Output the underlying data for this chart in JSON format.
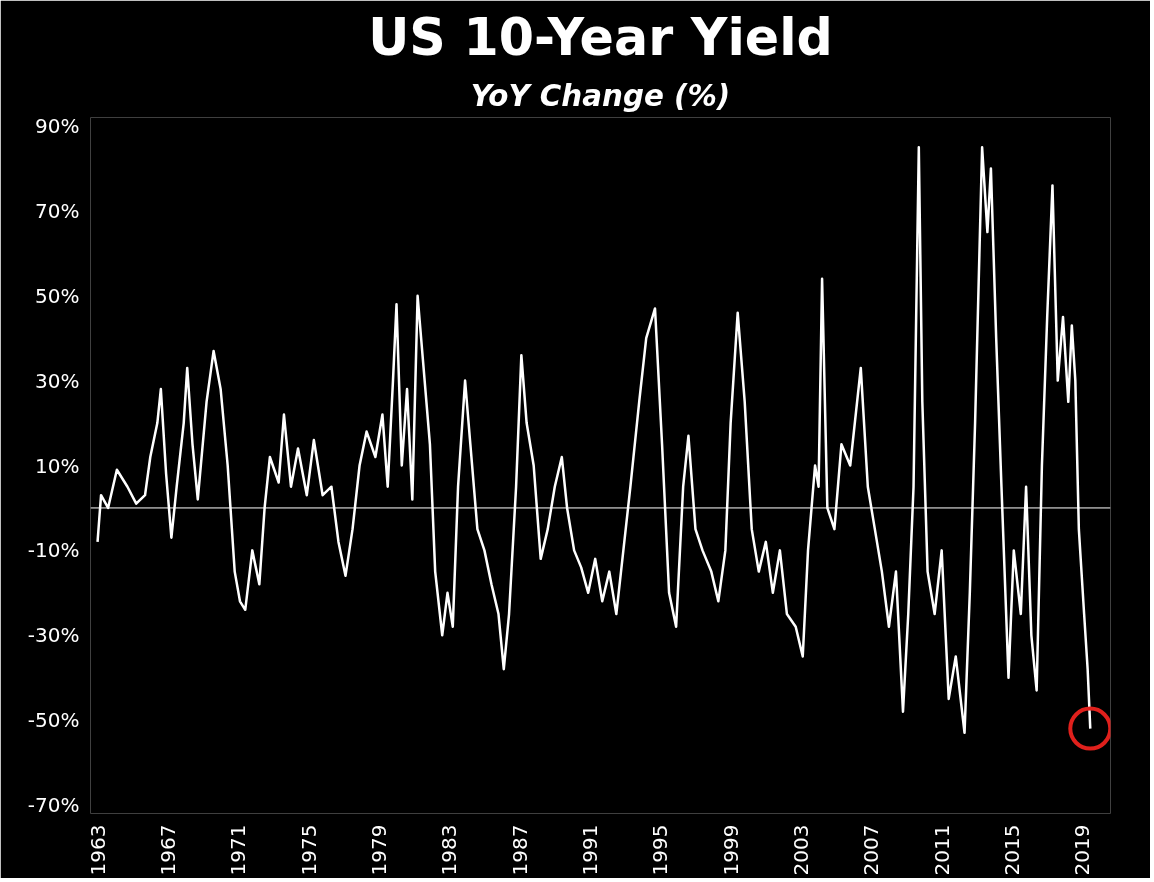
{
  "chart_data": {
    "type": "line",
    "title": "US 10-Year Yield",
    "subtitle": "YoY Change (%)",
    "x": [
      1963.0,
      1963.2,
      1963.6,
      1964.1,
      1964.7,
      1965.2,
      1965.7,
      1966.0,
      1966.4,
      1966.6,
      1966.9,
      1967.2,
      1967.5,
      1967.9,
      1968.1,
      1968.4,
      1968.7,
      1969.2,
      1969.6,
      1970.0,
      1970.4,
      1970.8,
      1971.1,
      1971.4,
      1971.8,
      1972.2,
      1972.5,
      1972.8,
      1973.3,
      1973.6,
      1974.0,
      1974.4,
      1974.9,
      1975.3,
      1975.8,
      1976.3,
      1976.7,
      1977.1,
      1977.5,
      1977.9,
      1978.3,
      1978.8,
      1979.2,
      1979.5,
      1979.8,
      1980.0,
      1980.3,
      1980.6,
      1980.9,
      1981.2,
      1981.5,
      1981.9,
      1982.2,
      1982.6,
      1982.9,
      1983.2,
      1983.5,
      1983.9,
      1984.2,
      1984.6,
      1985.0,
      1985.4,
      1985.8,
      1986.1,
      1986.4,
      1986.8,
      1987.1,
      1987.4,
      1987.8,
      1988.2,
      1988.6,
      1989.0,
      1989.4,
      1989.7,
      1990.1,
      1990.5,
      1990.9,
      1991.3,
      1991.7,
      1992.1,
      1992.5,
      1992.9,
      1993.3,
      1993.8,
      1994.2,
      1994.7,
      1995.1,
      1995.5,
      1995.9,
      1996.3,
      1996.6,
      1997.0,
      1997.4,
      1997.9,
      1998.3,
      1998.7,
      1999.0,
      1999.4,
      1999.8,
      2000.2,
      2000.6,
      2001.0,
      2001.4,
      2001.8,
      2002.2,
      2002.7,
      2003.1,
      2003.4,
      2003.8,
      2004.0,
      2004.2,
      2004.5,
      2004.9,
      2005.3,
      2005.8,
      2006.4,
      2006.8,
      2007.2,
      2007.6,
      2008.0,
      2008.4,
      2008.8,
      2009.1,
      2009.4,
      2009.7,
      2009.9,
      2010.2,
      2010.6,
      2011.0,
      2011.4,
      2011.8,
      2012.3,
      2012.6,
      2012.9,
      2013.3,
      2013.6,
      2013.8,
      2014.1,
      2014.4,
      2014.8,
      2015.1,
      2015.5,
      2015.8,
      2016.1,
      2016.4,
      2016.7,
      2017.0,
      2017.3,
      2017.6,
      2017.9,
      2018.2,
      2018.4,
      2018.6,
      2018.8,
      2019.1,
      2019.3,
      2019.45
    ],
    "series": [
      {
        "color": "#ffffff",
        "values": [
          -8,
          3,
          0,
          9,
          5,
          1,
          3,
          12,
          20,
          28,
          8,
          -7,
          5,
          20,
          33,
          15,
          2,
          25,
          37,
          28,
          10,
          -15,
          -22,
          -24,
          -10,
          -18,
          0,
          12,
          6,
          22,
          5,
          14,
          3,
          16,
          3,
          5,
          -8,
          -16,
          -5,
          10,
          18,
          12,
          22,
          5,
          30,
          48,
          10,
          28,
          2,
          50,
          35,
          15,
          -15,
          -30,
          -20,
          -28,
          5,
          30,
          15,
          -5,
          -10,
          -18,
          -25,
          -38,
          -25,
          5,
          36,
          20,
          10,
          -12,
          -5,
          5,
          12,
          0,
          -10,
          -14,
          -20,
          -12,
          -22,
          -15,
          -25,
          -10,
          5,
          25,
          40,
          47,
          15,
          -20,
          -28,
          5,
          17,
          -5,
          -10,
          -15,
          -22,
          -10,
          20,
          46,
          25,
          -5,
          -15,
          -8,
          -20,
          -10,
          -25,
          -28,
          -35,
          -10,
          10,
          5,
          54,
          0,
          -5,
          15,
          10,
          33,
          5,
          -5,
          -15,
          -28,
          -15,
          -48,
          -25,
          5,
          85,
          25,
          -15,
          -25,
          -10,
          -45,
          -35,
          -53,
          -20,
          20,
          85,
          65,
          80,
          40,
          5,
          -40,
          -10,
          -25,
          5,
          -30,
          -43,
          10,
          45,
          76,
          30,
          45,
          25,
          43,
          30,
          -5,
          -25,
          -38,
          -52
        ]
      },
      {
        "type": "scatter",
        "marker": "circle",
        "color": "#e0201c",
        "x": [
          2019.45
        ],
        "values": [
          -52
        ]
      }
    ],
    "xlim": [
      1962.6,
      2020.6
    ],
    "ylim": [
      -72,
      92
    ],
    "xticks": [
      1963,
      1967,
      1971,
      1975,
      1979,
      1983,
      1987,
      1991,
      1995,
      1999,
      2003,
      2007,
      2011,
      2015,
      2019
    ],
    "yticks": [
      {
        "value": -70,
        "label": "-70%"
      },
      {
        "value": -50,
        "label": "-50%"
      },
      {
        "value": -30,
        "label": "-30%"
      },
      {
        "value": -10,
        "label": "-10%"
      },
      {
        "value": 10,
        "label": "10%"
      },
      {
        "value": 30,
        "label": "30%"
      },
      {
        "value": 50,
        "label": "50%"
      },
      {
        "value": 70,
        "label": "70%"
      },
      {
        "value": 90,
        "label": "90%"
      }
    ],
    "ref_lines": [
      {
        "axis": "y",
        "value": 0,
        "color": "#ffffff"
      }
    ],
    "grid": false
  }
}
